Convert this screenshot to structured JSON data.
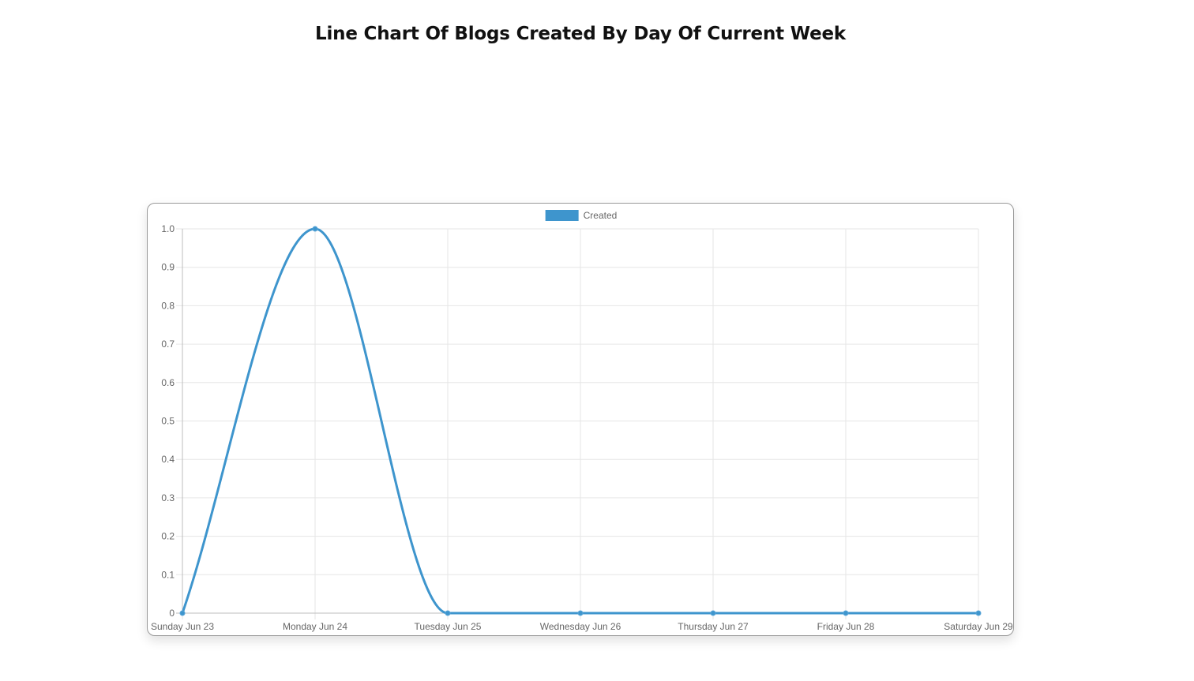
{
  "page": {
    "title": "Line Chart Of Blogs Created By Day Of Current Week"
  },
  "colors": {
    "series": "#3e95cd",
    "grid": "#e6e6e6",
    "axis": "#bdbdbd",
    "text": "#666666"
  },
  "chart_data": {
    "type": "line",
    "title": "",
    "xlabel": "",
    "ylabel": "",
    "categories": [
      "Sunday Jun 23",
      "Monday Jun 24",
      "Tuesday Jun 25",
      "Wednesday Jun 26",
      "Thursday Jun 27",
      "Friday Jun 28",
      "Saturday Jun 29"
    ],
    "series": [
      {
        "name": "Created",
        "values": [
          0,
          1,
          0,
          0,
          0,
          0,
          0
        ]
      }
    ],
    "ylim": [
      0,
      1
    ],
    "yticks": [
      "0",
      "0.1",
      "0.2",
      "0.3",
      "0.4",
      "0.5",
      "0.6",
      "0.7",
      "0.8",
      "0.9",
      "1.0"
    ],
    "grid": true,
    "legend": "top-center",
    "curve": "smooth"
  }
}
